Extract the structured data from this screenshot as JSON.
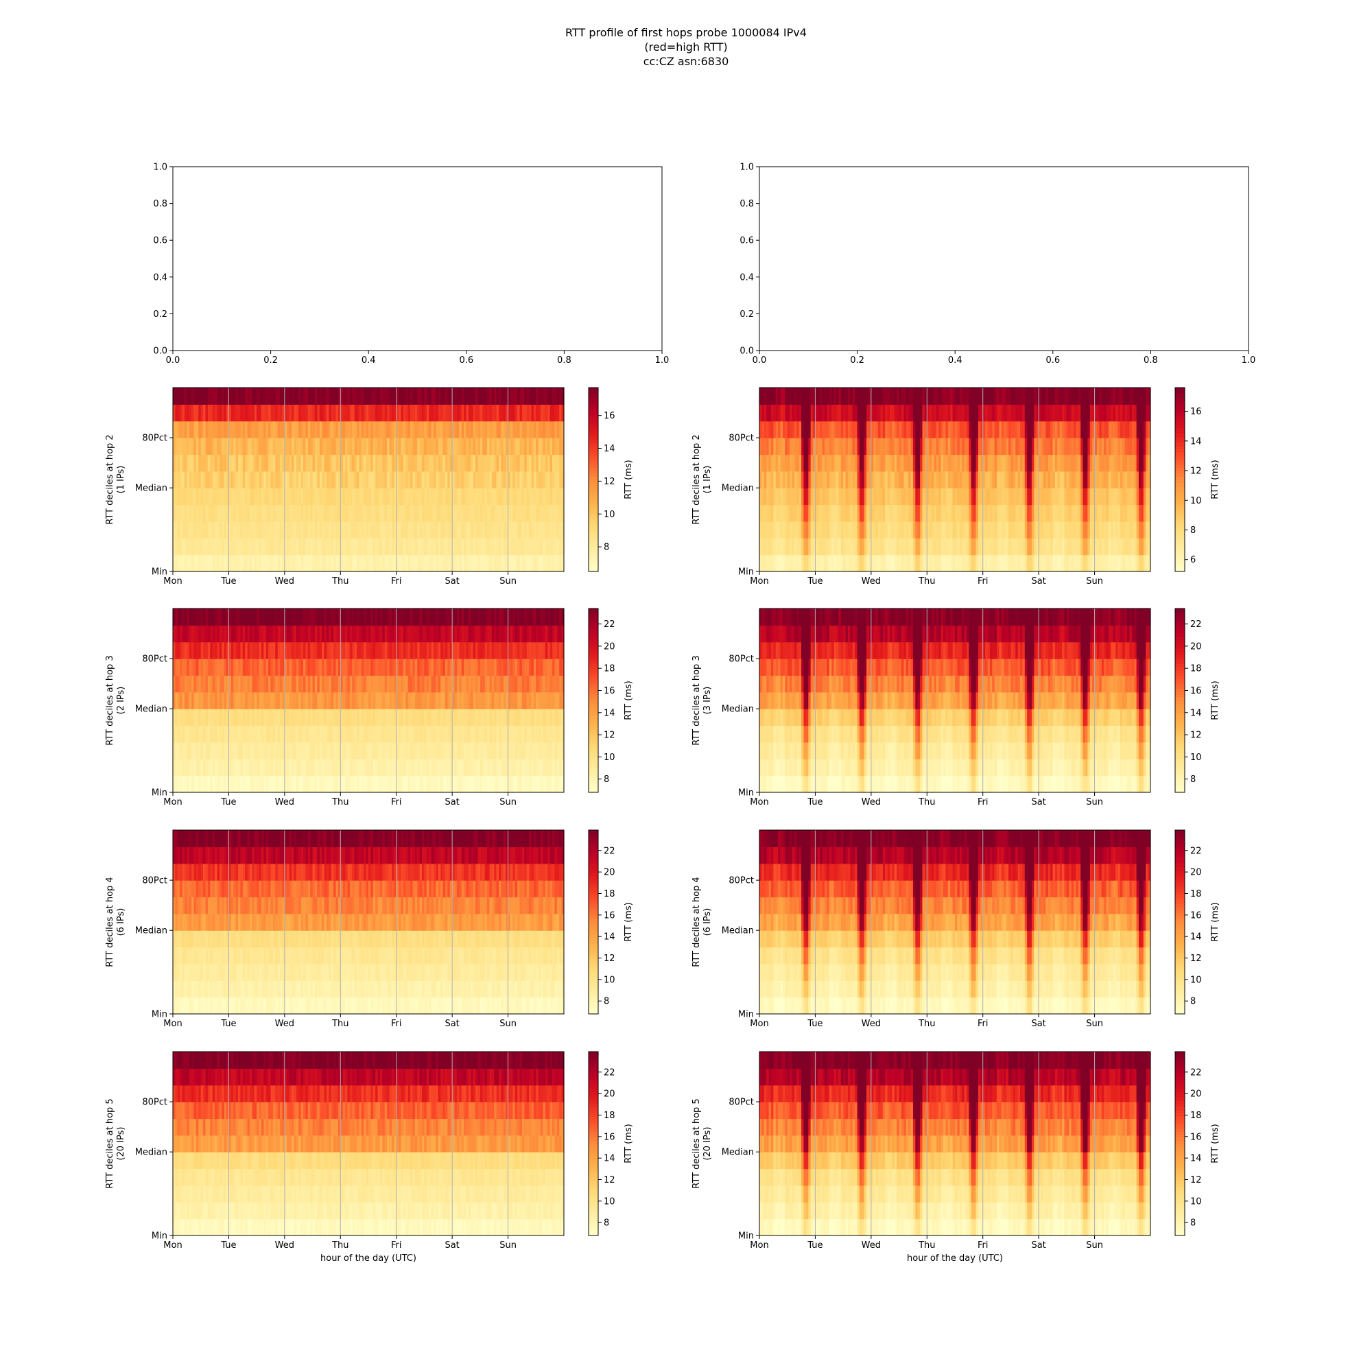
{
  "figure": {
    "title_lines": [
      "RTT profile of first hops probe 1000084 IPv4",
      "(red=high RTT)",
      "cc:CZ asn:6830"
    ],
    "xlabel": "hour of the day (UTC)",
    "colors": {
      "cmap": [
        "#ffffcc",
        "#ffeda0",
        "#fed976",
        "#feb24c",
        "#fd8d3c",
        "#fc4e2a",
        "#e31a1c",
        "#bd0026",
        "#800026"
      ],
      "grid": "#b0b0b0",
      "frame": "#000000"
    }
  },
  "chart_data": [
    {
      "type": "blank",
      "xlim": [
        0,
        1
      ],
      "ylim": [
        0,
        1
      ],
      "xticks": [
        "0.0",
        "0.2",
        "0.4",
        "0.6",
        "0.8",
        "1.0"
      ],
      "yticks": [
        "0.0",
        "0.2",
        "0.4",
        "0.6",
        "0.8",
        "1.0"
      ]
    },
    {
      "type": "blank",
      "xlim": [
        0,
        1
      ],
      "ylim": [
        0,
        1
      ],
      "xticks": [
        "0.0",
        "0.2",
        "0.4",
        "0.6",
        "0.8",
        "1.0"
      ],
      "yticks": [
        "0.0",
        "0.2",
        "0.4",
        "0.6",
        "0.8",
        "1.0"
      ]
    },
    {
      "type": "heatmap",
      "hop": 2,
      "ylabel_lines": [
        "RTT deciles at hop 2",
        "(1 IPs)"
      ],
      "days": [
        "Mon",
        "Tue",
        "Wed",
        "Thu",
        "Fri",
        "Sat",
        "Sun"
      ],
      "y_ticks": [
        "Min",
        "Median",
        "80Pct"
      ],
      "cbar": {
        "label": "RTT (ms)",
        "min": 6.5,
        "max": 17.7,
        "ticks": [
          8,
          10,
          12,
          14,
          16
        ]
      },
      "pattern": "flat",
      "deciles_ms": [
        7.5,
        8.2,
        8.6,
        8.9,
        9.2,
        9.6,
        10.0,
        10.6,
        11.4,
        14.5,
        17.7
      ]
    },
    {
      "type": "heatmap",
      "hop": 2,
      "ylabel_lines": [
        "RTT deciles at hop 2",
        "(1 IPs)"
      ],
      "days": [
        "Mon",
        "Tue",
        "Wed",
        "Thu",
        "Fri",
        "Sat",
        "Sun"
      ],
      "y_ticks": [
        "Min",
        "Median",
        "80Pct"
      ],
      "cbar": {
        "label": "RTT (ms)",
        "min": 5.2,
        "max": 17.6,
        "ticks": [
          6,
          8,
          10,
          12,
          14,
          16
        ]
      },
      "pattern": "diurnal",
      "deciles_ms": [
        6.5,
        7.6,
        8.2,
        8.7,
        9.3,
        10.0,
        10.8,
        11.8,
        13.0,
        15.5,
        17.6
      ]
    },
    {
      "type": "heatmap",
      "hop": 3,
      "ylabel_lines": [
        "RTT deciles at hop 3",
        "(2 IPs)"
      ],
      "days": [
        "Mon",
        "Tue",
        "Wed",
        "Thu",
        "Fri",
        "Sat",
        "Sun"
      ],
      "y_ticks": [
        "Min",
        "Median",
        "80Pct"
      ],
      "cbar": {
        "label": "RTT (ms)",
        "min": 6.8,
        "max": 23.4,
        "ticks": [
          8,
          10,
          12,
          14,
          16,
          18,
          20,
          22
        ]
      },
      "pattern": "flat",
      "deciles_ms": [
        7.5,
        8.4,
        9.0,
        9.6,
        10.4,
        14.5,
        15.5,
        16.5,
        18.5,
        21.0,
        23.4
      ]
    },
    {
      "type": "heatmap",
      "hop": 3,
      "ylabel_lines": [
        "RTT deciles at hop 3",
        "(3 IPs)"
      ],
      "days": [
        "Mon",
        "Tue",
        "Wed",
        "Thu",
        "Fri",
        "Sat",
        "Sun"
      ],
      "y_ticks": [
        "Min",
        "Median",
        "80Pct"
      ],
      "cbar": {
        "label": "RTT (ms)",
        "min": 6.8,
        "max": 23.4,
        "ticks": [
          8,
          10,
          12,
          14,
          16,
          18,
          20,
          22
        ]
      },
      "pattern": "diurnal",
      "deciles_ms": [
        7.5,
        8.5,
        9.2,
        10.0,
        11.5,
        14.0,
        15.5,
        17.0,
        19.0,
        21.5,
        23.4
      ]
    },
    {
      "type": "heatmap",
      "hop": 4,
      "ylabel_lines": [
        "RTT deciles at hop 4",
        "(6 IPs)"
      ],
      "days": [
        "Mon",
        "Tue",
        "Wed",
        "Thu",
        "Fri",
        "Sat",
        "Sun"
      ],
      "y_ticks": [
        "Min",
        "Median",
        "80Pct"
      ],
      "cbar": {
        "label": "RTT (ms)",
        "min": 6.8,
        "max": 23.9,
        "ticks": [
          8,
          10,
          12,
          14,
          16,
          18,
          20,
          22
        ]
      },
      "pattern": "flat",
      "deciles_ms": [
        7.5,
        8.4,
        9.0,
        9.6,
        10.4,
        14.5,
        15.6,
        16.6,
        18.6,
        21.5,
        23.9
      ]
    },
    {
      "type": "heatmap",
      "hop": 4,
      "ylabel_lines": [
        "RTT deciles at hop 4",
        "(6 IPs)"
      ],
      "days": [
        "Mon",
        "Tue",
        "Wed",
        "Thu",
        "Fri",
        "Sat",
        "Sun"
      ],
      "y_ticks": [
        "Min",
        "Median",
        "80Pct"
      ],
      "cbar": {
        "label": "RTT (ms)",
        "min": 6.8,
        "max": 23.9,
        "ticks": [
          8,
          10,
          12,
          14,
          16,
          18,
          20,
          22
        ]
      },
      "pattern": "diurnal",
      "deciles_ms": [
        7.6,
        8.6,
        9.3,
        10.2,
        11.8,
        14.2,
        15.7,
        17.2,
        19.2,
        22.0,
        23.9
      ]
    },
    {
      "type": "heatmap",
      "hop": 5,
      "ylabel_lines": [
        "RTT deciles at hop 5",
        "(20 IPs)"
      ],
      "days": [
        "Mon",
        "Tue",
        "Wed",
        "Thu",
        "Fri",
        "Sat",
        "Sun"
      ],
      "y_ticks": [
        "Min",
        "Median",
        "80Pct"
      ],
      "cbar": {
        "label": "RTT (ms)",
        "min": 6.8,
        "max": 23.9,
        "ticks": [
          8,
          10,
          12,
          14,
          16,
          18,
          20,
          22
        ]
      },
      "pattern": "flat",
      "deciles_ms": [
        7.5,
        8.4,
        9.0,
        9.6,
        10.6,
        14.5,
        15.6,
        16.8,
        18.8,
        21.5,
        23.9
      ]
    },
    {
      "type": "heatmap",
      "hop": 5,
      "ylabel_lines": [
        "RTT deciles at hop 5",
        "(20 IPs)"
      ],
      "days": [
        "Mon",
        "Tue",
        "Wed",
        "Thu",
        "Fri",
        "Sat",
        "Sun"
      ],
      "y_ticks": [
        "Min",
        "Median",
        "80Pct"
      ],
      "cbar": {
        "label": "RTT (ms)",
        "min": 6.8,
        "max": 23.9,
        "ticks": [
          8,
          10,
          12,
          14,
          16,
          18,
          20,
          22
        ]
      },
      "pattern": "diurnal",
      "deciles_ms": [
        7.6,
        8.6,
        9.4,
        10.3,
        12.0,
        14.3,
        15.8,
        17.3,
        19.3,
        22.0,
        23.9
      ]
    }
  ]
}
